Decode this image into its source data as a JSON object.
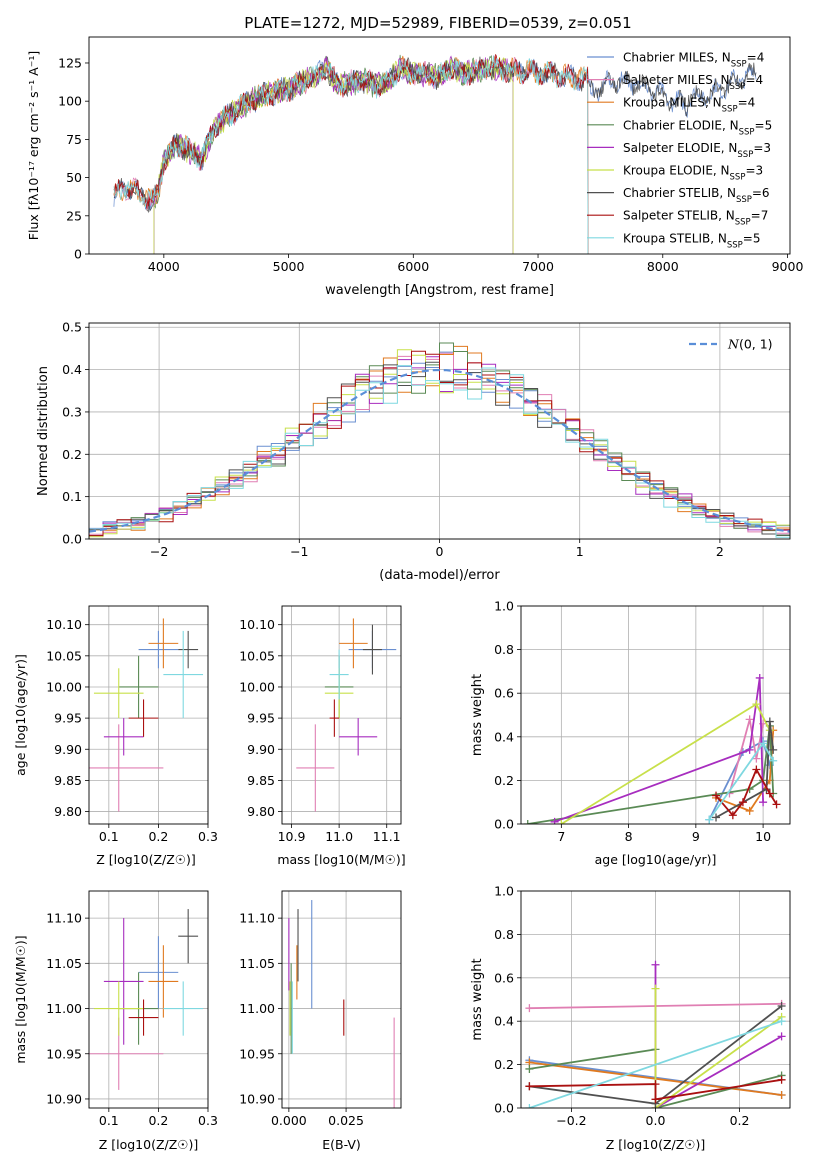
{
  "figure_title": "PLATE=1272, MJD=52989, FIBERID=0539, z=0.051",
  "colors": [
    "#6a8fd0",
    "#e07fb3",
    "#e07a20",
    "#5a8a55",
    "#a72dbf",
    "#c8e04a",
    "#505050",
    "#aa1010",
    "#7fd8e0"
  ],
  "chart_data": [
    {
      "type": "line",
      "id": "spectrum",
      "title": "PLATE=1272, MJD=52989, FIBERID=0539, z=0.051",
      "xlabel": "wavelength [Angstrom, rest frame]",
      "ylabel": "Flux [fλ10⁻¹⁷ erg cm⁻² s⁻¹ A⁻¹]",
      "xlim": [
        3400,
        9020
      ],
      "ylim": [
        0,
        142
      ],
      "xticks": [
        4000,
        5000,
        6000,
        7000,
        8000,
        9000
      ],
      "yticks": [
        0,
        25,
        50,
        75,
        100,
        125
      ],
      "grid": false,
      "legend_position": "right",
      "continuum": {
        "x": [
          3600,
          3700,
          3800,
          3900,
          3950,
          4000,
          4100,
          4200,
          4300,
          4400,
          4500,
          4600,
          4700,
          4800,
          4900,
          5000,
          5100,
          5200,
          5300,
          5400,
          5500,
          5600,
          5700,
          5800,
          5900,
          6000,
          6100,
          6200,
          6300,
          6400,
          6500,
          6600,
          6700,
          6800,
          6900,
          7000,
          7100,
          7200,
          7300,
          7400
        ],
        "y": [
          38,
          44,
          40,
          34,
          40,
          60,
          72,
          68,
          62,
          82,
          90,
          95,
          100,
          104,
          106,
          108,
          112,
          115,
          122,
          110,
          112,
          114,
          110,
          112,
          122,
          118,
          118,
          116,
          122,
          118,
          120,
          122,
          122,
          120,
          120,
          119,
          118,
          116,
          115,
          114
        ]
      },
      "series": [
        {
          "name": "Chabrier MILES",
          "nssp": "4",
          "end": 8750
        },
        {
          "name": "Salpeter MILES",
          "nssp": "4",
          "end": 7400
        },
        {
          "name": "Kroupa MILES",
          "nssp": "4",
          "end": 7400
        },
        {
          "name": "Chabrier ELODIE",
          "nssp": "5",
          "end": 6800,
          "start": 3920
        },
        {
          "name": "Salpeter ELODIE",
          "nssp": "3",
          "end": 6800,
          "start": 3920
        },
        {
          "name": "Kroupa ELODIE",
          "nssp": "3",
          "end": 6800,
          "start": 3920
        },
        {
          "name": "Chabrier STELIB",
          "nssp": "6",
          "end": 8750
        },
        {
          "name": "Salpeter STELIB",
          "nssp": "7",
          "end": 7400
        },
        {
          "name": "Kroupa STELIB",
          "nssp": "5",
          "end": 7400
        }
      ]
    },
    {
      "type": "line",
      "id": "residuals",
      "xlabel": "(data-model)/error",
      "ylabel": "Normed distribution",
      "xlim": [
        -2.5,
        2.5
      ],
      "ylim": [
        0,
        0.51
      ],
      "xticks": [
        -2,
        -1,
        0,
        1,
        2
      ],
      "yticks": [
        0.0,
        0.1,
        0.2,
        0.3,
        0.4,
        0.5
      ],
      "grid": true,
      "legend_position": "top-right",
      "legend": "N(0,1)",
      "bin_width": 0.1
    },
    {
      "type": "scatter",
      "id": "age_vs_Z",
      "xlabel": "Z [log10(Z/Z☉)]",
      "ylabel": "age  [log10(age/yr)]",
      "xlim": [
        0.06,
        0.3
      ],
      "ylim": [
        9.78,
        10.13
      ],
      "xticks": [
        0.1,
        0.2,
        0.3
      ],
      "yticks": [
        9.8,
        9.85,
        9.9,
        9.95,
        10.0,
        10.05,
        10.1
      ],
      "grid": true,
      "points": [
        {
          "x": 0.2,
          "y": 10.06,
          "xerr": 0.04,
          "yerr": 0.03
        },
        {
          "x": 0.12,
          "y": 9.87,
          "xerr": 0.09,
          "yerr": 0.07
        },
        {
          "x": 0.21,
          "y": 10.07,
          "xerr": 0.03,
          "yerr": 0.04
        },
        {
          "x": 0.16,
          "y": 10.0,
          "xerr": 0.04,
          "yerr": 0.05
        },
        {
          "x": 0.13,
          "y": 9.92,
          "xerr": 0.04,
          "yerr": 0.03
        },
        {
          "x": 0.12,
          "y": 9.99,
          "xerr": 0.05,
          "yerr": 0.04
        },
        {
          "x": 0.26,
          "y": 10.06,
          "xerr": 0.02,
          "yerr": 0.03
        },
        {
          "x": 0.17,
          "y": 9.95,
          "xerr": 0.03,
          "yerr": 0.03
        },
        {
          "x": 0.25,
          "y": 10.02,
          "xerr": 0.04,
          "yerr": 0.07
        }
      ]
    },
    {
      "type": "scatter",
      "id": "age_vs_mass",
      "xlabel": "mass [log10(M/M☉)]",
      "xlim": [
        10.88,
        11.13
      ],
      "ylim": [
        9.78,
        10.13
      ],
      "xticks": [
        10.9,
        11.0,
        11.1
      ],
      "yticks": [
        9.8,
        9.85,
        9.9,
        9.95,
        10.0,
        10.05,
        10.1
      ],
      "grid": true,
      "points": [
        {
          "x": 11.07,
          "y": 10.06,
          "xerr": 0.05,
          "yerr": 0.03
        },
        {
          "x": 10.95,
          "y": 9.87,
          "xerr": 0.04,
          "yerr": 0.07
        },
        {
          "x": 11.03,
          "y": 10.07,
          "xerr": 0.03,
          "yerr": 0.04
        },
        {
          "x": 11.0,
          "y": 10.0,
          "xerr": 0.03,
          "yerr": 0.05
        },
        {
          "x": 11.04,
          "y": 9.92,
          "xerr": 0.04,
          "yerr": 0.03
        },
        {
          "x": 11.0,
          "y": 9.99,
          "xerr": 0.03,
          "yerr": 0.04
        },
        {
          "x": 11.07,
          "y": 10.06,
          "xerr": 0.02,
          "yerr": 0.04
        },
        {
          "x": 10.99,
          "y": 9.95,
          "xerr": 0.01,
          "yerr": 0.03
        },
        {
          "x": 11.0,
          "y": 10.02,
          "xerr": 0.02,
          "yerr": 0.04
        }
      ]
    },
    {
      "type": "line",
      "id": "weight_vs_age",
      "xlabel": "age  [log10(age/yr)]",
      "ylabel": "mass weight",
      "xlim": [
        6.4,
        10.4
      ],
      "ylim": [
        0,
        1.0
      ],
      "xticks": [
        7,
        8,
        9,
        10
      ],
      "yticks": [
        0.0,
        0.2,
        0.4,
        0.6,
        0.8,
        1.0
      ],
      "grid": true,
      "series": [
        {
          "x": [
            9.2,
            9.7,
            10.0,
            10.1
          ],
          "y": [
            0.02,
            0.33,
            0.38,
            0.27
          ]
        },
        {
          "x": [
            9.5,
            9.8,
            9.9,
            10.0
          ],
          "y": [
            0.14,
            0.48,
            0.3,
            0.46
          ]
        },
        {
          "x": [
            9.3,
            9.8,
            10.1,
            10.15
          ],
          "y": [
            0.12,
            0.06,
            0.2,
            0.43
          ]
        },
        {
          "x": [
            6.5,
            9.8,
            10.0,
            10.1,
            10.15
          ],
          "y": [
            0.0,
            0.16,
            0.2,
            0.45,
            0.14
          ]
        },
        {
          "x": [
            6.9,
            9.8,
            9.95,
            10.0
          ],
          "y": [
            0.01,
            0.34,
            0.67,
            0.1
          ]
        },
        {
          "x": [
            7.0,
            9.9,
            10.1
          ],
          "y": [
            0.0,
            0.55,
            0.43
          ]
        },
        {
          "x": [
            9.3,
            10.05,
            10.1,
            10.15
          ],
          "y": [
            0.03,
            0.16,
            0.47,
            0.34
          ]
        },
        {
          "x": [
            9.3,
            9.55,
            9.7,
            9.9,
            10.1,
            10.2
          ],
          "y": [
            0.13,
            0.04,
            0.1,
            0.25,
            0.14,
            0.09
          ]
        },
        {
          "x": [
            9.2,
            10.0,
            10.15
          ],
          "y": [
            0.02,
            0.37,
            0.29
          ]
        }
      ]
    },
    {
      "type": "scatter",
      "id": "mass_vs_Z",
      "xlabel": "Z [log10(Z/Z☉)]",
      "ylabel": "mass [log10(M/M☉)]",
      "xlim": [
        0.06,
        0.3
      ],
      "ylim": [
        10.89,
        11.13
      ],
      "xticks": [
        0.1,
        0.2,
        0.3
      ],
      "yticks": [
        10.9,
        10.95,
        11.0,
        11.05,
        11.1
      ],
      "grid": true,
      "points": [
        {
          "x": 0.2,
          "y": 11.04,
          "xerr": 0.04,
          "yerr": 0.04
        },
        {
          "x": 0.12,
          "y": 10.95,
          "xerr": 0.09,
          "yerr": 0.04
        },
        {
          "x": 0.21,
          "y": 11.03,
          "xerr": 0.03,
          "yerr": 0.04
        },
        {
          "x": 0.16,
          "y": 11.0,
          "xerr": 0.04,
          "yerr": 0.04
        },
        {
          "x": 0.13,
          "y": 11.03,
          "xerr": 0.04,
          "yerr": 0.07
        },
        {
          "x": 0.12,
          "y": 11.0,
          "xerr": 0.05,
          "yerr": 0.03
        },
        {
          "x": 0.26,
          "y": 11.08,
          "xerr": 0.02,
          "yerr": 0.03
        },
        {
          "x": 0.17,
          "y": 10.99,
          "xerr": 0.03,
          "yerr": 0.02
        },
        {
          "x": 0.25,
          "y": 11.0,
          "xerr": 0.04,
          "yerr": 0.03
        }
      ]
    },
    {
      "type": "scatter",
      "id": "mass_vs_EBV",
      "xlabel": "E(B-V)",
      "xlim": [
        -0.003,
        0.049
      ],
      "ylim": [
        10.89,
        11.13
      ],
      "xticks": [
        0.0,
        0.025
      ],
      "yticks": [
        10.9,
        10.95,
        11.0,
        11.05,
        11.1
      ],
      "grid": true,
      "points": [
        {
          "x": 0.01,
          "y": 11.06,
          "yerr": 0.06
        },
        {
          "x": 0.046,
          "y": 10.94,
          "yerr": 0.05
        },
        {
          "x": 0.0035,
          "y": 11.04,
          "yerr": 0.03
        },
        {
          "x": 0.001,
          "y": 11.0,
          "yerr": 0.05
        },
        {
          "x": 0.0,
          "y": 11.06,
          "yerr": 0.04
        },
        {
          "x": 0.0005,
          "y": 11.0,
          "yerr": 0.03
        },
        {
          "x": 0.004,
          "y": 11.07,
          "yerr": 0.04
        },
        {
          "x": 0.024,
          "y": 10.99,
          "yerr": 0.02
        },
        {
          "x": 0.0015,
          "y": 10.99,
          "yerr": 0.04
        }
      ]
    },
    {
      "type": "line",
      "id": "weight_vs_Z",
      "xlabel": "Z [log10(Z/Z☉)]",
      "ylabel": "mass weight",
      "xlim": [
        -0.32,
        0.32
      ],
      "ylim": [
        0,
        1.0
      ],
      "xticks": [
        -0.2,
        0.0,
        0.2
      ],
      "yticks": [
        0.0,
        0.2,
        0.4,
        0.6,
        0.8,
        1.0
      ],
      "grid": true,
      "series": [
        {
          "x": [
            -0.3,
            0.3
          ],
          "y": [
            0.22,
            0.06
          ]
        },
        {
          "x": [
            -0.3,
            0.3
          ],
          "y": [
            0.46,
            0.48
          ]
        },
        {
          "x": [
            -0.3,
            0.3
          ],
          "y": [
            0.21,
            0.06
          ]
        },
        {
          "x": [
            -0.3,
            0.0,
            0.0,
            0.3
          ],
          "y": [
            0.18,
            0.27,
            0.0,
            0.15
          ]
        },
        {
          "x": [
            0.0,
            0.0,
            0.3
          ],
          "y": [
            0.66,
            0.0,
            0.33
          ]
        },
        {
          "x": [
            0.0,
            0.0,
            0.3
          ],
          "y": [
            0.55,
            0.0,
            0.42
          ]
        },
        {
          "x": [
            -0.3,
            0.0,
            0.3
          ],
          "y": [
            0.1,
            0.02,
            0.47
          ]
        },
        {
          "x": [
            -0.3,
            0.0,
            0.0,
            0.3
          ],
          "y": [
            0.1,
            0.11,
            0.04,
            0.13
          ]
        },
        {
          "x": [
            -0.3,
            0.3
          ],
          "y": [
            0.0,
            0.4
          ]
        }
      ]
    }
  ]
}
